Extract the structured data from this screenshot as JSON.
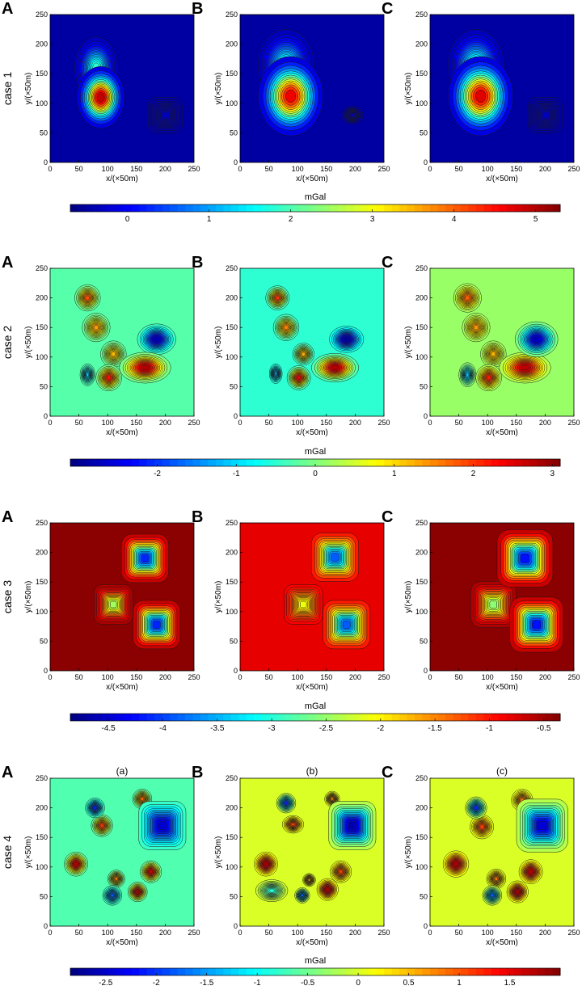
{
  "figure": {
    "panel_letters": [
      "A",
      "B",
      "C"
    ],
    "sub_captions": [
      "(a)",
      "(b)",
      "(c)"
    ],
    "x_label": "x/(×50m)",
    "y_label": "y/(×50m)",
    "axis_ticks": [
      0,
      50,
      100,
      150,
      200,
      250
    ],
    "colorbar_label": "mGal"
  },
  "chart_data": [
    {
      "type": "heatmap",
      "case": "case 1",
      "xlabel": "x/(×50m)",
      "ylabel": "y/(×50m)",
      "xlim": [
        0,
        250
      ],
      "ylim": [
        0,
        250
      ],
      "grid": false,
      "colorbar": {
        "label": "mGal",
        "range": [
          -0.7,
          5.3
        ],
        "ticks": [
          "0",
          "1",
          "2",
          "3",
          "4",
          "5"
        ],
        "tick_values": [
          0,
          1,
          2,
          3,
          4,
          5
        ]
      },
      "panels": [
        {
          "letter": "A",
          "caption": "",
          "background": -0.5,
          "anomalies": [
            {
              "x": 88,
              "y": 110,
              "sx": 22,
              "sy": 28,
              "amp": 5.3
            },
            {
              "x": 80,
              "y": 160,
              "sx": 20,
              "sy": 28,
              "amp": 2.0
            },
            {
              "x": 200,
              "y": 80,
              "sx": 16,
              "sy": 16,
              "amp": -0.3,
              "box": true
            }
          ]
        },
        {
          "letter": "B",
          "caption": "",
          "background": -0.5,
          "anomalies": [
            {
              "x": 88,
              "y": 112,
              "sx": 30,
              "sy": 36,
              "amp": 5.0
            },
            {
              "x": 80,
              "y": 165,
              "sx": 26,
              "sy": 32,
              "amp": 1.8
            },
            {
              "x": 195,
              "y": 80,
              "sx": 10,
              "sy": 8,
              "amp": -0.25
            }
          ]
        },
        {
          "letter": "C",
          "caption": "",
          "background": -0.5,
          "anomalies": [
            {
              "x": 88,
              "y": 112,
              "sx": 30,
              "sy": 36,
              "amp": 5.1
            },
            {
              "x": 80,
              "y": 165,
              "sx": 26,
              "sy": 32,
              "amp": 1.9
            },
            {
              "x": 200,
              "y": 80,
              "sx": 16,
              "sy": 16,
              "amp": -0.3,
              "box": true
            }
          ]
        }
      ]
    },
    {
      "type": "heatmap",
      "case": "case 2",
      "xlabel": "x/(×50m)",
      "ylabel": "y/(×50m)",
      "xlim": [
        0,
        250
      ],
      "ylim": [
        0,
        250
      ],
      "grid": false,
      "colorbar": {
        "label": "mGal",
        "range": [
          -3.1,
          3.1
        ],
        "ticks": [
          "-2",
          "-1",
          "0",
          "1",
          "2",
          "3"
        ],
        "tick_values": [
          -2,
          -1,
          0,
          1,
          2,
          3
        ]
      },
      "panels": [
        {
          "letter": "A",
          "caption": "",
          "background": -0.25,
          "anomalies": [
            {
              "x": 65,
              "y": 200,
              "sx": 12,
              "sy": 12,
              "amp": 2.0
            },
            {
              "x": 80,
              "y": 150,
              "sx": 13,
              "sy": 13,
              "amp": 1.5
            },
            {
              "x": 110,
              "y": 105,
              "sx": 12,
              "sy": 12,
              "amp": 1.3
            },
            {
              "x": 102,
              "y": 65,
              "sx": 12,
              "sy": 12,
              "amp": 2.4
            },
            {
              "x": 165,
              "y": 82,
              "sx": 24,
              "sy": 14,
              "amp": 3.0
            },
            {
              "x": 185,
              "y": 130,
              "sx": 18,
              "sy": 14,
              "amp": -2.9
            },
            {
              "x": 65,
              "y": 70,
              "sx": 7,
              "sy": 10,
              "amp": -1.2
            }
          ]
        },
        {
          "letter": "B",
          "caption": "",
          "background": -0.5,
          "anomalies": [
            {
              "x": 65,
              "y": 200,
              "sx": 11,
              "sy": 11,
              "amp": 2.2
            },
            {
              "x": 80,
              "y": 150,
              "sx": 12,
              "sy": 12,
              "amp": 1.7
            },
            {
              "x": 110,
              "y": 105,
              "sx": 10,
              "sy": 10,
              "amp": 1.4
            },
            {
              "x": 102,
              "y": 65,
              "sx": 11,
              "sy": 11,
              "amp": 2.6
            },
            {
              "x": 165,
              "y": 82,
              "sx": 22,
              "sy": 13,
              "amp": 3.0
            },
            {
              "x": 185,
              "y": 130,
              "sx": 16,
              "sy": 12,
              "amp": -3.0
            },
            {
              "x": 62,
              "y": 72,
              "sx": 6,
              "sy": 9,
              "amp": -1.4
            }
          ]
        },
        {
          "letter": "C",
          "caption": "",
          "background": 0.15,
          "anomalies": [
            {
              "x": 65,
              "y": 200,
              "sx": 13,
              "sy": 13,
              "amp": 1.9
            },
            {
              "x": 80,
              "y": 150,
              "sx": 13,
              "sy": 13,
              "amp": 1.5
            },
            {
              "x": 110,
              "y": 105,
              "sx": 12,
              "sy": 12,
              "amp": 1.3
            },
            {
              "x": 102,
              "y": 65,
              "sx": 12,
              "sy": 12,
              "amp": 2.3
            },
            {
              "x": 165,
              "y": 82,
              "sx": 24,
              "sy": 14,
              "amp": 2.9
            },
            {
              "x": 185,
              "y": 130,
              "sx": 20,
              "sy": 16,
              "amp": -2.9
            },
            {
              "x": 65,
              "y": 70,
              "sx": 8,
              "sy": 11,
              "amp": -1.3
            }
          ]
        }
      ]
    },
    {
      "type": "heatmap",
      "case": "case 3",
      "xlabel": "x/(×50m)",
      "ylabel": "y/(×50m)",
      "xlim": [
        0,
        250
      ],
      "ylim": [
        0,
        250
      ],
      "grid": false,
      "colorbar": {
        "label": "mGal",
        "range": [
          -4.85,
          -0.35
        ],
        "ticks": [
          "-4.5",
          "-4",
          "-3.5",
          "-3",
          "-2.5",
          "-2",
          "-1.5",
          "-1",
          "-0.5"
        ],
        "tick_values": [
          -4.5,
          -4,
          -3.5,
          -3,
          -2.5,
          -2,
          -1.5,
          -1,
          -0.5
        ]
      },
      "panels": [
        {
          "letter": "A",
          "caption": "",
          "background": -0.4,
          "anomalies": [
            {
              "x": 165,
              "y": 190,
              "sx": 22,
              "sy": 22,
              "amp": -4.4,
              "box": true
            },
            {
              "x": 185,
              "y": 78,
              "sx": 22,
              "sy": 22,
              "amp": -4.4,
              "box": true
            },
            {
              "x": 110,
              "y": 112,
              "sx": 18,
              "sy": 18,
              "amp": -2.6,
              "box": true
            }
          ]
        },
        {
          "letter": "B",
          "caption": "",
          "background": -0.8,
          "anomalies": [
            {
              "x": 165,
              "y": 192,
              "sx": 22,
              "sy": 22,
              "amp": -4.1,
              "box": true
            },
            {
              "x": 185,
              "y": 78,
              "sx": 22,
              "sy": 22,
              "amp": -4.1,
              "box": true
            },
            {
              "x": 110,
              "y": 112,
              "sx": 18,
              "sy": 18,
              "amp": -2.2,
              "box": true
            }
          ]
        },
        {
          "letter": "C",
          "caption": "",
          "background": -0.4,
          "anomalies": [
            {
              "x": 165,
              "y": 190,
              "sx": 26,
              "sy": 26,
              "amp": -4.5,
              "box": true
            },
            {
              "x": 185,
              "y": 78,
              "sx": 25,
              "sy": 25,
              "amp": -4.5,
              "box": true
            },
            {
              "x": 110,
              "y": 112,
              "sx": 21,
              "sy": 21,
              "amp": -2.7,
              "box": true
            }
          ]
        }
      ]
    },
    {
      "type": "heatmap",
      "case": "case 4",
      "xlabel": "x/(×50m)",
      "ylabel": "y/(×50m)",
      "xlim": [
        0,
        250
      ],
      "ylim": [
        0,
        250
      ],
      "grid": false,
      "colorbar": {
        "label": "mGal",
        "range": [
          -2.85,
          2.0
        ],
        "ticks": [
          "-2.5",
          "-2",
          "-1.5",
          "-1",
          "-0.5",
          "0",
          "0.5",
          "1",
          "1.5"
        ],
        "tick_values": [
          -2.5,
          -2,
          -1.5,
          -1,
          -0.5,
          0,
          0.5,
          1,
          1.5
        ]
      },
      "panels": [
        {
          "letter": "A",
          "caption": "(a)",
          "background": -0.65,
          "anomalies": [
            {
              "x": 78,
              "y": 200,
              "sx": 9,
              "sy": 9,
              "amp": -2.2
            },
            {
              "x": 90,
              "y": 170,
              "sx": 10,
              "sy": 10,
              "amp": 1.3
            },
            {
              "x": 160,
              "y": 215,
              "sx": 9,
              "sy": 9,
              "amp": 1.0
            },
            {
              "x": 195,
              "y": 170,
              "sx": 22,
              "sy": 22,
              "amp": -2.6,
              "box": true
            },
            {
              "x": 45,
              "y": 105,
              "sx": 11,
              "sy": 11,
              "amp": 1.9
            },
            {
              "x": 115,
              "y": 80,
              "sx": 8,
              "sy": 8,
              "amp": 0.9
            },
            {
              "x": 108,
              "y": 52,
              "sx": 9,
              "sy": 9,
              "amp": -1.9
            },
            {
              "x": 152,
              "y": 58,
              "sx": 9,
              "sy": 9,
              "amp": 1.9
            },
            {
              "x": 175,
              "y": 92,
              "sx": 10,
              "sy": 10,
              "amp": 1.8
            }
          ]
        },
        {
          "letter": "B",
          "caption": "(b)",
          "background": 0.0,
          "anomalies": [
            {
              "x": 80,
              "y": 208,
              "sx": 9,
              "sy": 9,
              "amp": -2.2
            },
            {
              "x": 92,
              "y": 172,
              "sx": 10,
              "sy": 8,
              "amp": 1.2
            },
            {
              "x": 160,
              "y": 215,
              "sx": 7,
              "sy": 7,
              "amp": 0.8
            },
            {
              "x": 195,
              "y": 170,
              "sx": 22,
              "sy": 22,
              "amp": -2.8,
              "box": true
            },
            {
              "x": 45,
              "y": 105,
              "sx": 11,
              "sy": 11,
              "amp": 1.9
            },
            {
              "x": 120,
              "y": 78,
              "sx": 6,
              "sy": 6,
              "amp": 0.7
            },
            {
              "x": 108,
              "y": 52,
              "sx": 7,
              "sy": 7,
              "amp": -1.9
            },
            {
              "x": 152,
              "y": 62,
              "sx": 10,
              "sy": 10,
              "amp": 1.9
            },
            {
              "x": 175,
              "y": 92,
              "sx": 10,
              "sy": 10,
              "amp": 1.2
            },
            {
              "x": 55,
              "y": 60,
              "sx": 15,
              "sy": 10,
              "amp": -0.9
            }
          ]
        },
        {
          "letter": "C",
          "caption": "(c)",
          "background": 0.0,
          "anomalies": [
            {
              "x": 80,
              "y": 200,
              "sx": 10,
              "sy": 10,
              "amp": -2.2
            },
            {
              "x": 90,
              "y": 168,
              "sx": 11,
              "sy": 11,
              "amp": 1.2
            },
            {
              "x": 160,
              "y": 213,
              "sx": 10,
              "sy": 10,
              "amp": 0.9
            },
            {
              "x": 195,
              "y": 170,
              "sx": 24,
              "sy": 24,
              "amp": -2.6,
              "box": true
            },
            {
              "x": 45,
              "y": 105,
              "sx": 12,
              "sy": 12,
              "amp": 1.9
            },
            {
              "x": 115,
              "y": 80,
              "sx": 9,
              "sy": 9,
              "amp": 0.9
            },
            {
              "x": 108,
              "y": 52,
              "sx": 9,
              "sy": 9,
              "amp": -1.9
            },
            {
              "x": 152,
              "y": 58,
              "sx": 10,
              "sy": 10,
              "amp": 1.9
            },
            {
              "x": 175,
              "y": 92,
              "sx": 11,
              "sy": 11,
              "amp": 1.8
            }
          ]
        }
      ]
    }
  ]
}
